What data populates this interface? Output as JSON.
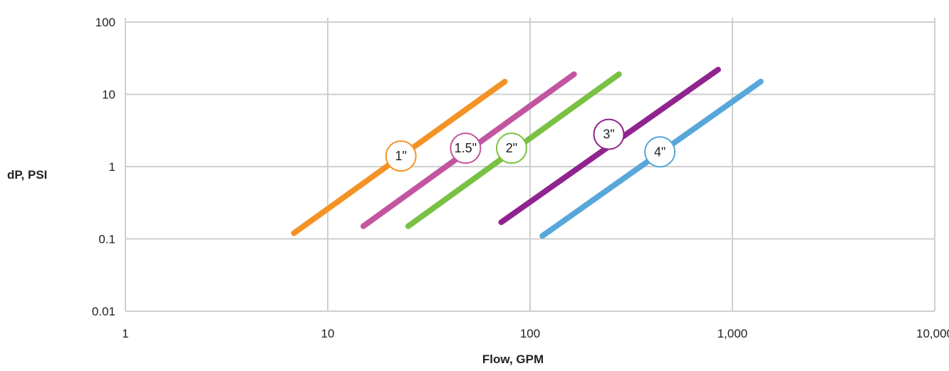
{
  "chart_data": {
    "type": "line",
    "xlabel": "Flow, GPM",
    "ylabel": "dP, PSI",
    "x_scale": "log",
    "y_scale": "log",
    "xlim": [
      1,
      10000
    ],
    "ylim": [
      0.01,
      100
    ],
    "x_ticks": [
      "1",
      "10",
      "100",
      "1,000",
      "10,000"
    ],
    "y_ticks": [
      "100",
      "10",
      "1",
      "0.1",
      "0.01"
    ],
    "grid": true,
    "legend": "none",
    "series": [
      {
        "name": "1\"",
        "color": "#f39325",
        "x": [
          6.8,
          75
        ],
        "y": [
          0.12,
          15
        ],
        "label_at": {
          "x": 23,
          "y": 1.4
        }
      },
      {
        "name": "1.5\"",
        "color": "#c2559f",
        "x": [
          15,
          165
        ],
        "y": [
          0.15,
          19
        ],
        "label_at": {
          "x": 48,
          "y": 1.8
        }
      },
      {
        "name": "2\"",
        "color": "#79c143",
        "x": [
          25,
          275
        ],
        "y": [
          0.15,
          19
        ],
        "label_at": {
          "x": 81,
          "y": 1.8
        }
      },
      {
        "name": "3\"",
        "color": "#90248f",
        "x": [
          72,
          850
        ],
        "y": [
          0.17,
          22
        ],
        "label_at": {
          "x": 245,
          "y": 2.8
        }
      },
      {
        "name": "4\"",
        "color": "#58a7db",
        "x": [
          115,
          1380
        ],
        "y": [
          0.11,
          15
        ],
        "label_at": {
          "x": 438,
          "y": 1.6
        }
      }
    ]
  }
}
